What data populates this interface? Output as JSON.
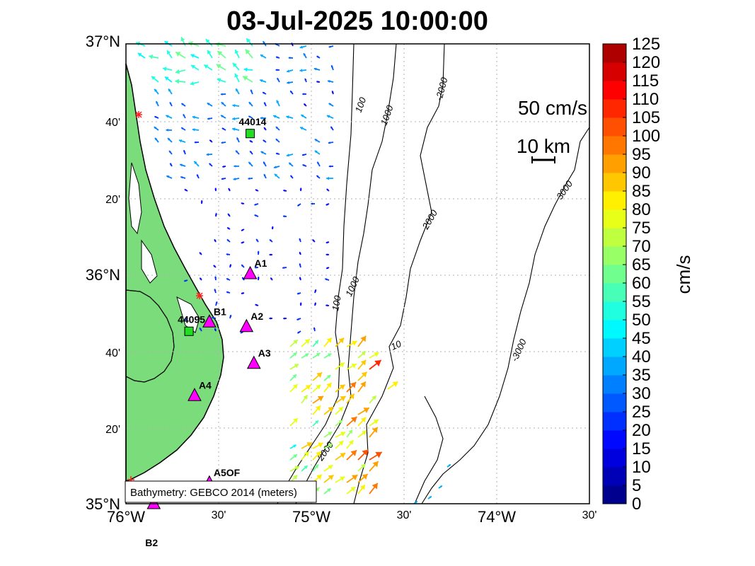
{
  "title": "03-Jul-2025 10:00:00",
  "lat_labels": [
    {
      "text": "37°N",
      "size": "big"
    },
    {
      "text": "40'",
      "size": "sm"
    },
    {
      "text": "20'",
      "size": "sm"
    },
    {
      "text": "36°N",
      "size": "big"
    },
    {
      "text": "40'",
      "size": "sm"
    },
    {
      "text": "20'",
      "size": "sm"
    },
    {
      "text": "35°N",
      "size": "big"
    }
  ],
  "lon_labels": [
    {
      "text": "76°W",
      "size": "big"
    },
    {
      "text": "30'",
      "size": "sm"
    },
    {
      "text": "75°W",
      "size": "big"
    },
    {
      "text": "30'",
      "size": "sm"
    },
    {
      "text": "74°W",
      "size": "big"
    },
    {
      "text": "30'",
      "size": "sm"
    }
  ],
  "scale": {
    "vector": "50 cm/s",
    "distance": "10 km"
  },
  "bathymetry_note": "Bathymetry: GEBCO 2014 (meters)",
  "contour_labels": [
    "100",
    "1000",
    "2000",
    "3000",
    "-2000",
    "1000",
    "100",
    "-3000",
    "10",
    "2000"
  ],
  "stations": [
    {
      "label": "44014",
      "kind": "buoy",
      "lon": -75.33,
      "lat": 36.61
    },
    {
      "label": "44095",
      "kind": "buoy",
      "lon": -75.66,
      "lat": 35.75
    },
    {
      "label": "A1",
      "kind": "mooring",
      "lon": -75.33,
      "lat": 36.0
    },
    {
      "label": "A2",
      "kind": "mooring",
      "lon": -75.35,
      "lat": 35.77
    },
    {
      "label": "A3",
      "kind": "mooring",
      "lon": -75.31,
      "lat": 35.61
    },
    {
      "label": "A4",
      "kind": "mooring",
      "lon": -75.63,
      "lat": 35.47
    },
    {
      "label": "B1",
      "kind": "mooring",
      "lon": -75.55,
      "lat": 35.79
    },
    {
      "label": "A5OF",
      "kind": "mooring",
      "lon": -75.55,
      "lat": 35.09
    },
    {
      "label": "B2",
      "kind": "mooring",
      "lon": -75.85,
      "lat": 35.0
    }
  ],
  "colorbar": {
    "label": "cm/s",
    "ticks": [
      "0",
      "5",
      "10",
      "15",
      "20",
      "25",
      "30",
      "35",
      "40",
      "45",
      "50",
      "55",
      "60",
      "65",
      "70",
      "75",
      "80",
      "85",
      "90",
      "95",
      "100",
      "105",
      "110",
      "115",
      "120",
      "125"
    ],
    "colors": [
      "#00008f",
      "#0000b7",
      "#0000df",
      "#0008ff",
      "#0030ff",
      "#0058ff",
      "#0080ff",
      "#00a8ff",
      "#00d0ff",
      "#00f8ff",
      "#20ffdf",
      "#48ffb7",
      "#70ff8f",
      "#98ff67",
      "#c0ff3f",
      "#e8ff17",
      "#ffef00",
      "#ffc700",
      "#ff9f00",
      "#ff7700",
      "#ff4f00",
      "#ff2700",
      "#ff0000",
      "#d70000",
      "#af0000"
    ]
  },
  "colors": {
    "land": "#7bdc7b",
    "buoy": "#22dd22",
    "mooring": "#ff00ff",
    "grid": "#b0b0b0"
  }
}
